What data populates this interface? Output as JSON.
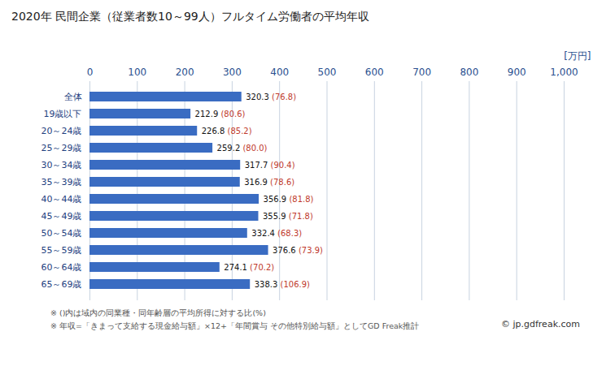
{
  "chart_data": {
    "type": "bar",
    "orientation": "horizontal",
    "title": "2020年 民間企業（従業者数10～99人）フルタイム労働者の平均年収",
    "x_label": "[万円]",
    "categories": [
      "全体",
      "19歳以下",
      "20～24歳",
      "25～29歳",
      "30～34歳",
      "35～39歳",
      "40～44歳",
      "45～49歳",
      "50～54歳",
      "55～59歳",
      "60～64歳",
      "65～69歳"
    ],
    "values": [
      320.3,
      212.9,
      226.8,
      259.2,
      317.7,
      316.9,
      356.9,
      355.9,
      332.4,
      376.6,
      274.1,
      338.3
    ],
    "ratio_labels": [
      "(76.8)",
      "(80.6)",
      "(85.2)",
      "(80.0)",
      "(90.4)",
      "(78.6)",
      "(81.8)",
      "(71.8)",
      "(68.3)",
      "(73.9)",
      "(70.2)",
      "(106.9)"
    ],
    "color": "#3a6cc2",
    "xlim": [
      0,
      1000
    ],
    "xticks": [
      0,
      100,
      200,
      300,
      400,
      500,
      600,
      700,
      800,
      900,
      1000
    ],
    "grid": true,
    "data_labels": true,
    "notes": [
      "※ ()内は域内の同業種・同年齢層の平均所得に対する比(%)",
      "※ 年収=「きまって支給する現金給与額」×12+「年間賞与 その他特別給与額」としてGD Freak推計"
    ],
    "credit": "© jp.gdfreak.com"
  }
}
